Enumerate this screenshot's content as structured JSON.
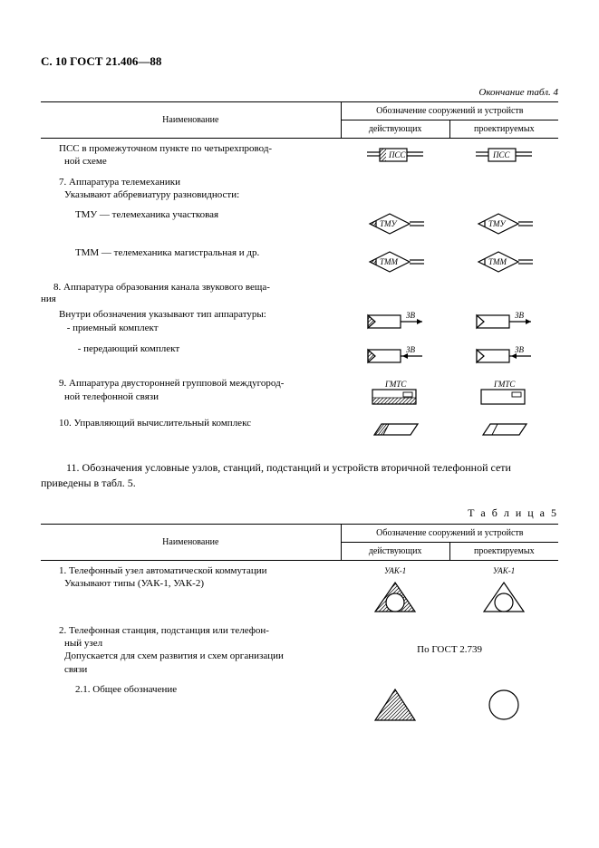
{
  "page_header": "С. 10 ГОСТ 21.406—88",
  "continuation_caption": "Окончание табл. 4",
  "table_header": {
    "name": "Наименование",
    "group": "Обозначение сооружений и устройств",
    "existing": "действующих",
    "projected": "проектируемых"
  },
  "table4_rows": [
    {
      "name_html": "ПСС в промежуточном пункте по четырехпровод-<br>ной схеме",
      "sym": "pss_e",
      "sym2": "pss_p"
    },
    {
      "name_html": "7. Аппаратура телемеханики<br>Указывают аббревиатуру разновидности:",
      "sym": "",
      "sym2": ""
    },
    {
      "name_html": "ТМУ — телемеханика участковая",
      "sym": "tmu_e",
      "sym2": "tmu_p",
      "indent": true
    },
    {
      "name_html": "ТММ — телемеханика магистральная и др.",
      "sym": "tmm_e",
      "sym2": "tmm_p",
      "indent": true
    },
    {
      "name_html": "8. Аппаратура образования канала звукового веща-",
      "sym": "",
      "sym2": "",
      "outdent": true
    },
    {
      "name_html": "Внутри обозначения указывают тип аппаратуры:<br>&nbsp;- приемный комплект",
      "sym": "zv_rx_e",
      "sym2": "zv_rx_p"
    },
    {
      "name_html": "&nbsp;- передающий комплект",
      "sym": "zv_tx_e",
      "sym2": "zv_tx_p",
      "indent": true
    },
    {
      "name_html": "9. Аппаратура двусторонней групповой междугород-<br>ной телефонной связи",
      "sym": "gmtc_e",
      "sym2": "gmtc_p"
    },
    {
      "name_html": "10. Управляющий вычислительный комплекс",
      "sym": "uvk_e",
      "sym2": "uvk_p"
    }
  ],
  "outdent_line": "ния",
  "paragraph_11": "11. Обозначения условные узлов, станций, подстанций и устройств вторичной телефонной сети приведены в табл. 5.",
  "table5_caption": "Т а б л и ц а  5",
  "table5_rows": [
    {
      "name_html": "1. Телефонный узел автоматической коммутации<br>Указывают типы (УАК-1, УАК-2)",
      "sym": "uak_e",
      "sym2": "uak_p",
      "label_e": "УАК-1",
      "label_p": "УАК-1"
    },
    {
      "name_html": "2. Телефонная станция, подстанция или телефон-<br>ный узел<br>Допускается для схем развития и схем организации<br>связи",
      "merged": "По ГОСТ 2.739"
    },
    {
      "name_html": "2.1. Общее обозначение",
      "sym": "ts_e",
      "sym2": "ts_p",
      "indent": true
    }
  ],
  "style": {
    "stroke": "#000000",
    "stroke_width": 1.2,
    "hatch_spacing": 4,
    "label_font": "italic 9px 'Times New Roman'"
  },
  "labels": {
    "PSS": "ПСС",
    "TMU": "ТМУ",
    "TMM": "ТММ",
    "ZV": "ЗВ",
    "GMTC": "ГМТС"
  }
}
